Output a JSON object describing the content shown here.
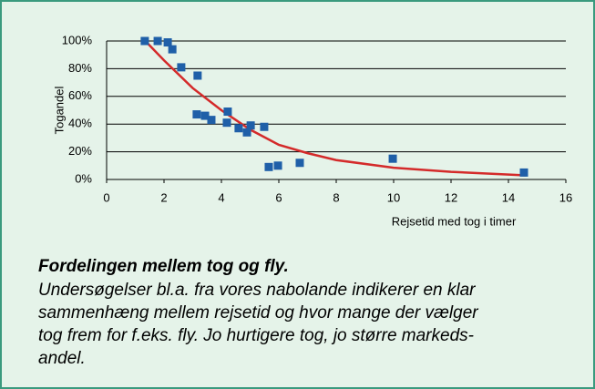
{
  "chart_data": {
    "type": "scatter",
    "xlabel": "Rejsetid med tog i timer",
    "ylabel": "Togandel",
    "xlim": [
      0,
      16
    ],
    "xticks": [
      0,
      2,
      4,
      6,
      8,
      10,
      12,
      14,
      16
    ],
    "ylim": [
      0,
      100
    ],
    "yticks": [
      {
        "value": 0,
        "label": "0%"
      },
      {
        "value": 20,
        "label": "20%"
      },
      {
        "value": 40,
        "label": "40%"
      },
      {
        "value": 60,
        "label": "60%"
      },
      {
        "value": 80,
        "label": "80%"
      },
      {
        "value": 100,
        "label": "100%"
      }
    ],
    "grid": true,
    "series": [
      {
        "color": "#1f5fa8",
        "x": [
          1.33,
          1.78,
          2.13,
          2.29,
          2.6,
          3.17,
          3.14,
          3.43,
          3.65,
          4.19,
          4.22,
          4.6,
          4.89,
          5.02,
          5.49,
          5.65,
          5.97,
          6.73,
          9.97,
          14.54
        ],
        "y": [
          100,
          100,
          99,
          94,
          81,
          75,
          47,
          46,
          43,
          41,
          49,
          37,
          34,
          39,
          38,
          9,
          10,
          12,
          15,
          5
        ]
      }
    ],
    "trend": {
      "color": "#d42a2a",
      "x": [
        1.35,
        2,
        3,
        4,
        5,
        6,
        7,
        8,
        10,
        12,
        14.6
      ],
      "y": [
        100,
        86,
        66,
        50,
        36,
        25,
        19,
        14,
        8.5,
        5.5,
        3
      ]
    }
  },
  "caption": {
    "title": "Fordelingen mellem tog og fly.",
    "lines": [
      "Undersøgelser bl.a. fra vores nabolande indikerer en klar",
      "sammenhæng mellem rejsetid og hvor mange der vælger",
      "tog frem for f.eks. fly. Jo hurtigere tog, jo større markeds-",
      "andel."
    ]
  }
}
